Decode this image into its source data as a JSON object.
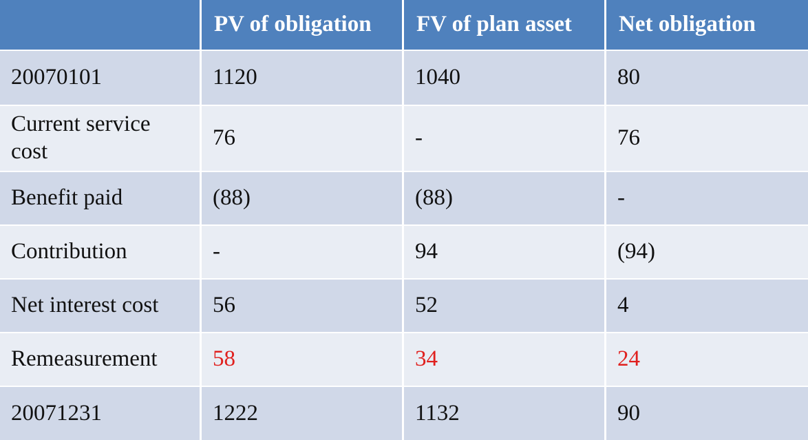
{
  "table": {
    "header": [
      "PV of obligation",
      "FV of plan asset",
      "Net obligation"
    ],
    "rows": [
      {
        "label": "20070101",
        "cells": [
          "1120",
          "1040",
          "80"
        ]
      },
      {
        "label": "Current service cost",
        "cells": [
          "76",
          "-",
          "76"
        ]
      },
      {
        "label": "Benefit paid",
        "cells": [
          "(88)",
          "(88)",
          "-"
        ]
      },
      {
        "label": "Contribution",
        "cells": [
          "-",
          "94",
          "(94)"
        ]
      },
      {
        "label": "Net interest cost",
        "cells": [
          "56",
          "52",
          "4"
        ]
      },
      {
        "label": "Remeasurement",
        "cells": [
          "58",
          "34",
          "24"
        ]
      },
      {
        "label": "20071231",
        "cells": [
          "1222",
          "1132",
          "90"
        ]
      }
    ]
  }
}
